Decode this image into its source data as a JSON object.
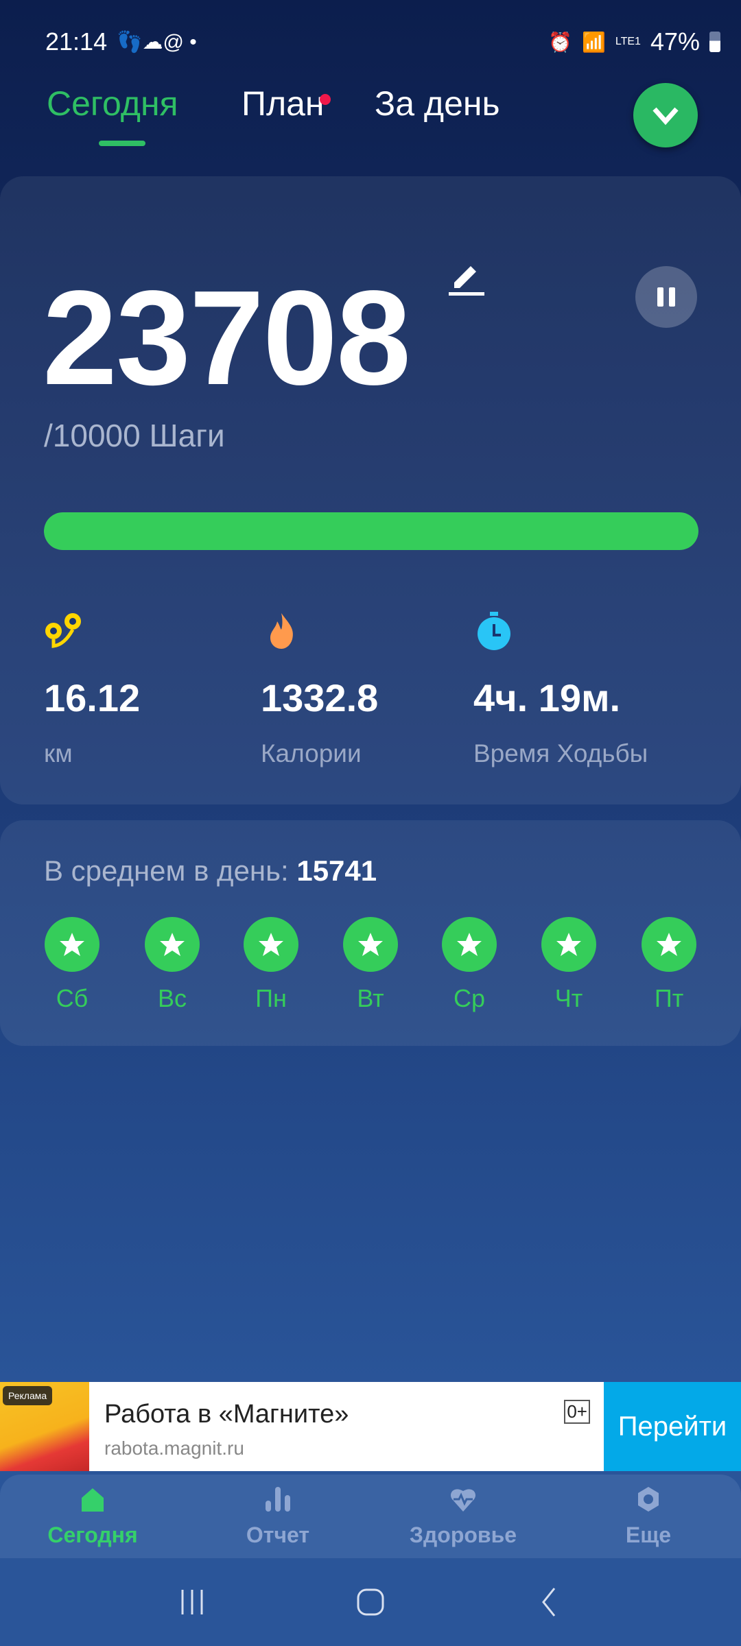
{
  "status_bar": {
    "time": "21:14",
    "battery": "47%",
    "network": "LTE1"
  },
  "tabs": [
    {
      "label": "Сегодня",
      "active": true
    },
    {
      "label": "План",
      "badge": true
    },
    {
      "label": "За день"
    }
  ],
  "steps": {
    "count": "23708",
    "goal_label": "/10000 Шаги",
    "progress_percent": 100
  },
  "stats": [
    {
      "icon": "route-pin-icon",
      "value": "16.12",
      "label": "км",
      "color": "#ffd600"
    },
    {
      "icon": "flame-icon",
      "value": "1332.8",
      "label": "Калории",
      "color": "#ff9a4d"
    },
    {
      "icon": "stopwatch-icon",
      "value": "4ч. 19м.",
      "label": "Время Ходьбы",
      "color": "#29c5f6"
    }
  ],
  "average": {
    "label": "В среднем в день:",
    "value": "15741"
  },
  "week": [
    {
      "day": "Сб"
    },
    {
      "day": "Вс"
    },
    {
      "day": "Пн"
    },
    {
      "day": "Вт"
    },
    {
      "day": "Ср"
    },
    {
      "day": "Чт"
    },
    {
      "day": "Пт"
    }
  ],
  "ad": {
    "tag": "Реклама",
    "title": "Работа в «Магните»",
    "url": "rabota.magnit.ru",
    "age": "0+",
    "button": "Перейти"
  },
  "bottom_nav": [
    {
      "label": "Сегодня",
      "active": true
    },
    {
      "label": "Отчет"
    },
    {
      "label": "Здоровье"
    },
    {
      "label": "Еще"
    }
  ],
  "colors": {
    "accent": "#35cd5a",
    "tab_active": "#2fbf64",
    "badge": "#f0184a"
  }
}
